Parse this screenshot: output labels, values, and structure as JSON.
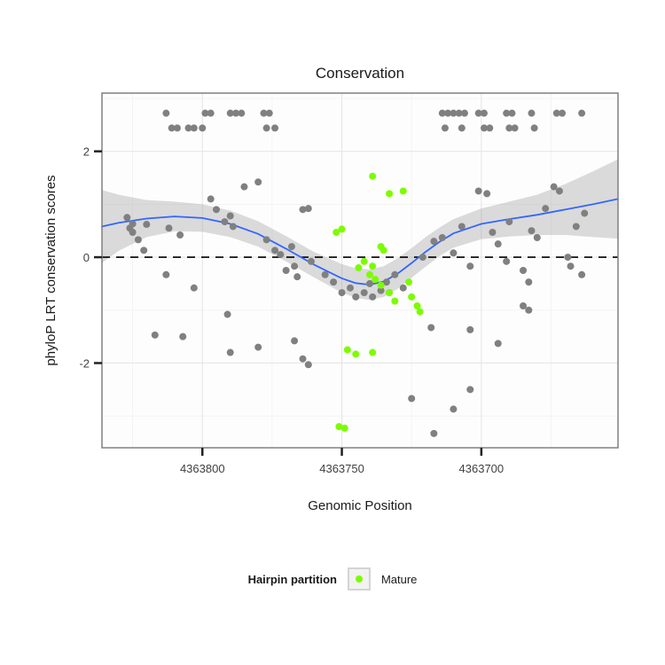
{
  "legend": {
    "title": "Hairpin partition",
    "items": [
      {
        "label": "Mature",
        "color": "#7CFC00"
      }
    ]
  },
  "chart_data": {
    "type": "scatter",
    "title": "Conservation",
    "xlabel": "Genomic Position",
    "ylabel": "phyloP LRT conservation scores",
    "x_domain": [
      4363836,
      4363651
    ],
    "y_domain": [
      -3.6,
      3.1
    ],
    "x_reversed": true,
    "grid": true,
    "legend_position": "bottom",
    "x_ticks": [
      {
        "value": 4363800,
        "label": "4363800"
      },
      {
        "value": 4363750,
        "label": "4363750"
      },
      {
        "value": 4363700,
        "label": "4363700"
      }
    ],
    "x_minor_ticks": [
      4363825,
      4363775,
      4363725,
      4363675
    ],
    "y_ticks": [
      {
        "value": 2,
        "label": "2"
      },
      {
        "value": 0,
        "label": "0"
      },
      {
        "value": -2,
        "label": "-2"
      }
    ],
    "y_minor_ticks": [
      3,
      1,
      -1,
      -3
    ],
    "colors": {
      "panel_bg": "#fdfdfd",
      "panel_border": "#808080",
      "grid_major": "#e6e6e6",
      "grid_minor": "#f2f2f2",
      "gray_points": "#808080",
      "mature_points": "#7CFC00",
      "smooth_line": "#3366FF",
      "band": "#8c8c8c",
      "reference_line": "#000000"
    },
    "hline": {
      "y": 0,
      "style": "dashed",
      "color": "#000000"
    },
    "smooth": {
      "color": "#3366FF",
      "points": [
        [
          4363836,
          0.58
        ],
        [
          4363830,
          0.65
        ],
        [
          4363820,
          0.73
        ],
        [
          4363810,
          0.77
        ],
        [
          4363800,
          0.74
        ],
        [
          4363790,
          0.63
        ],
        [
          4363780,
          0.44
        ],
        [
          4363770,
          0.16
        ],
        [
          4363760,
          -0.14
        ],
        [
          4363750,
          -0.4
        ],
        [
          4363745,
          -0.49
        ],
        [
          4363740,
          -0.52
        ],
        [
          4363735,
          -0.46
        ],
        [
          4363730,
          -0.31
        ],
        [
          4363725,
          -0.11
        ],
        [
          4363720,
          0.1
        ],
        [
          4363715,
          0.29
        ],
        [
          4363710,
          0.45
        ],
        [
          4363700,
          0.63
        ],
        [
          4363690,
          0.72
        ],
        [
          4363680,
          0.8
        ],
        [
          4363670,
          0.9
        ],
        [
          4363660,
          1.0
        ],
        [
          4363651,
          1.1
        ]
      ]
    },
    "band": {
      "color": "#8c8c8c",
      "opacity": 0.3,
      "points": [
        [
          4363836,
          1.27,
          -0.11
        ],
        [
          4363830,
          1.18,
          0.12
        ],
        [
          4363820,
          1.08,
          0.38
        ],
        [
          4363810,
          1.05,
          0.49
        ],
        [
          4363800,
          1.0,
          0.48
        ],
        [
          4363790,
          0.88,
          0.38
        ],
        [
          4363780,
          0.68,
          0.2
        ],
        [
          4363770,
          0.4,
          -0.08
        ],
        [
          4363760,
          0.1,
          -0.38
        ],
        [
          4363750,
          -0.13,
          -0.67
        ],
        [
          4363745,
          -0.21,
          -0.77
        ],
        [
          4363740,
          -0.23,
          -0.81
        ],
        [
          4363735,
          -0.17,
          -0.75
        ],
        [
          4363730,
          -0.02,
          -0.6
        ],
        [
          4363725,
          0.17,
          -0.39
        ],
        [
          4363720,
          0.38,
          -0.18
        ],
        [
          4363715,
          0.56,
          0.02
        ],
        [
          4363710,
          0.72,
          0.18
        ],
        [
          4363700,
          0.92,
          0.34
        ],
        [
          4363690,
          1.05,
          0.39
        ],
        [
          4363680,
          1.18,
          0.42
        ],
        [
          4363670,
          1.38,
          0.42
        ],
        [
          4363660,
          1.62,
          0.38
        ],
        [
          4363651,
          1.85,
          0.35
        ]
      ]
    },
    "series": [
      {
        "name": "other",
        "color": "#808080",
        "radius": 4,
        "points": [
          [
            4363813,
            2.72
          ],
          [
            4363799,
            2.72
          ],
          [
            4363797,
            2.72
          ],
          [
            4363790,
            2.72
          ],
          [
            4363788,
            2.72
          ],
          [
            4363786,
            2.72
          ],
          [
            4363778,
            2.72
          ],
          [
            4363776,
            2.72
          ],
          [
            4363714,
            2.72
          ],
          [
            4363712,
            2.72
          ],
          [
            4363710,
            2.72
          ],
          [
            4363708,
            2.72
          ],
          [
            4363706,
            2.72
          ],
          [
            4363701,
            2.72
          ],
          [
            4363699,
            2.72
          ],
          [
            4363691,
            2.72
          ],
          [
            4363689,
            2.72
          ],
          [
            4363682,
            2.72
          ],
          [
            4363673,
            2.72
          ],
          [
            4363671,
            2.72
          ],
          [
            4363664,
            2.72
          ],
          [
            4363811,
            2.44
          ],
          [
            4363809,
            2.44
          ],
          [
            4363805,
            2.44
          ],
          [
            4363803,
            2.44
          ],
          [
            4363800,
            2.44
          ],
          [
            4363777,
            2.44
          ],
          [
            4363774,
            2.44
          ],
          [
            4363713,
            2.44
          ],
          [
            4363707,
            2.44
          ],
          [
            4363699,
            2.44
          ],
          [
            4363697,
            2.44
          ],
          [
            4363690,
            2.44
          ],
          [
            4363688,
            2.44
          ],
          [
            4363681,
            2.44
          ],
          [
            4363827,
            0.75
          ],
          [
            4363826,
            0.55
          ],
          [
            4363825,
            0.63
          ],
          [
            4363825,
            0.47
          ],
          [
            4363823,
            0.33
          ],
          [
            4363821,
            0.13
          ],
          [
            4363820,
            0.62
          ],
          [
            4363817,
            -1.47
          ],
          [
            4363813,
            -0.33
          ],
          [
            4363812,
            0.55
          ],
          [
            4363808,
            0.42
          ],
          [
            4363807,
            -1.5
          ],
          [
            4363803,
            -0.58
          ],
          [
            4363797,
            1.1
          ],
          [
            4363795,
            0.9
          ],
          [
            4363792,
            0.67
          ],
          [
            4363790,
            0.78
          ],
          [
            4363789,
            0.58
          ],
          [
            4363785,
            1.33
          ],
          [
            4363780,
            1.42
          ],
          [
            4363777,
            0.33
          ],
          [
            4363774,
            0.13
          ],
          [
            4363791,
            -1.08
          ],
          [
            4363790,
            -1.8
          ],
          [
            4363780,
            -1.7
          ],
          [
            4363772,
            0.05
          ],
          [
            4363770,
            -0.25
          ],
          [
            4363768,
            0.2
          ],
          [
            4363764,
            0.9
          ],
          [
            4363762,
            0.92
          ],
          [
            4363767,
            -0.17
          ],
          [
            4363766,
            -0.37
          ],
          [
            4363761,
            -0.08
          ],
          [
            4363756,
            -0.33
          ],
          [
            4363753,
            -0.47
          ],
          [
            4363750,
            -0.67
          ],
          [
            4363747,
            -0.58
          ],
          [
            4363745,
            -0.75
          ],
          [
            4363742,
            -0.67
          ],
          [
            4363740,
            -0.5
          ],
          [
            4363739,
            -0.75
          ],
          [
            4363736,
            -0.63
          ],
          [
            4363734,
            -0.47
          ],
          [
            4363733,
            -0.67
          ],
          [
            4363731,
            -0.33
          ],
          [
            4363728,
            -0.58
          ],
          [
            4363767,
            -1.58
          ],
          [
            4363764,
            -1.92
          ],
          [
            4363762,
            -2.03
          ],
          [
            4363721,
            0.0
          ],
          [
            4363717,
            0.3
          ],
          [
            4363714,
            0.37
          ],
          [
            4363710,
            0.08
          ],
          [
            4363707,
            0.58
          ],
          [
            4363704,
            -0.17
          ],
          [
            4363701,
            1.25
          ],
          [
            4363698,
            1.2
          ],
          [
            4363696,
            0.47
          ],
          [
            4363694,
            0.25
          ],
          [
            4363691,
            -0.08
          ],
          [
            4363690,
            0.67
          ],
          [
            4363685,
            -0.25
          ],
          [
            4363683,
            -0.47
          ],
          [
            4363682,
            0.5
          ],
          [
            4363680,
            0.37
          ],
          [
            4363677,
            0.92
          ],
          [
            4363674,
            1.33
          ],
          [
            4363672,
            1.25
          ],
          [
            4363669,
            0.0
          ],
          [
            4363668,
            -0.17
          ],
          [
            4363666,
            0.58
          ],
          [
            4363664,
            -0.33
          ],
          [
            4363663,
            0.83
          ],
          [
            4363718,
            -1.33
          ],
          [
            4363704,
            -1.37
          ],
          [
            4363694,
            -1.63
          ],
          [
            4363685,
            -0.92
          ],
          [
            4363683,
            -1.0
          ],
          [
            4363725,
            -2.67
          ],
          [
            4363717,
            -3.33
          ],
          [
            4363710,
            -2.87
          ],
          [
            4363704,
            -2.5
          ]
        ]
      },
      {
        "name": "mature",
        "color": "#7CFC00",
        "radius": 4,
        "points": [
          [
            4363739,
            1.53
          ],
          [
            4363733,
            1.2
          ],
          [
            4363728,
            1.25
          ],
          [
            4363750,
            0.53
          ],
          [
            4363752,
            0.47
          ],
          [
            4363736,
            0.2
          ],
          [
            4363735,
            0.13
          ],
          [
            4363742,
            -0.08
          ],
          [
            4363744,
            -0.2
          ],
          [
            4363739,
            -0.17
          ],
          [
            4363740,
            -0.33
          ],
          [
            4363738,
            -0.42
          ],
          [
            4363736,
            -0.53
          ],
          [
            4363733,
            -0.67
          ],
          [
            4363731,
            -0.83
          ],
          [
            4363726,
            -0.47
          ],
          [
            4363725,
            -0.75
          ],
          [
            4363723,
            -0.92
          ],
          [
            4363722,
            -1.03
          ],
          [
            4363748,
            -1.75
          ],
          [
            4363745,
            -1.83
          ],
          [
            4363739,
            -1.8
          ],
          [
            4363751,
            -3.2
          ],
          [
            4363749,
            -3.23
          ]
        ]
      }
    ]
  }
}
